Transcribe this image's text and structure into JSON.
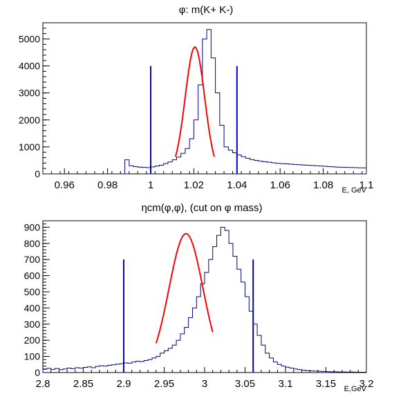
{
  "chart_data": [
    {
      "type": "histogram",
      "title": "φ: m(K+ K-)",
      "xlabel": "E, GeV",
      "ylabel": "",
      "xlim": [
        0.95,
        1.1
      ],
      "ylim": [
        0,
        5600
      ],
      "xticks": [
        "0.96",
        "0.98",
        "1",
        "1.02",
        "1.04",
        "1.06",
        "1.08",
        "1.1"
      ],
      "yticks": [
        "0",
        "1000",
        "2000",
        "3000",
        "4000",
        "5000"
      ],
      "hist": {
        "bin_width": 0.002,
        "x_start": 0.988,
        "counts": [
          520,
          300,
          270,
          250,
          240,
          230,
          260,
          290,
          320,
          380,
          440,
          520,
          620,
          760,
          940,
          1300,
          2000,
          3300,
          5000,
          5350,
          4300,
          3000,
          1800,
          1000,
          880,
          780,
          700,
          640,
          580,
          530,
          500,
          470,
          450,
          430,
          410,
          390,
          380,
          370,
          360,
          350,
          340,
          330,
          320,
          310,
          300,
          290,
          280,
          270,
          260,
          250,
          245,
          240,
          235,
          230,
          225,
          220
        ]
      },
      "fit": {
        "type": "gaussian",
        "amplitude": 4700,
        "mean": 1.0205,
        "sigma": 0.0045,
        "x_range": [
          1.0115,
          1.0295
        ],
        "color": "#ff0000"
      },
      "cut_lines": [
        {
          "x": 1.0,
          "y_top": 4000,
          "color": "#0000cc"
        },
        {
          "x": 1.04,
          "y_top": 4000,
          "color": "#0000cc"
        }
      ],
      "hist_color": "#000080"
    },
    {
      "type": "histogram",
      "title": "ηcm(φ,φ), (cut on φ mass)",
      "xlabel": "E,GeV",
      "ylabel": "",
      "xlim": [
        2.8,
        3.2
      ],
      "ylim": [
        0,
        940
      ],
      "xticks": [
        "2.8",
        "2.85",
        "2.9",
        "2.95",
        "3",
        "3.05",
        "3.1",
        "3.15",
        "3.2"
      ],
      "yticks": [
        "0",
        "100",
        "200",
        "300",
        "400",
        "500",
        "600",
        "700",
        "800",
        "900"
      ],
      "hist": {
        "bin_width": 0.005,
        "x_start": 2.8,
        "counts": [
          22,
          26,
          20,
          25,
          18,
          22,
          28,
          24,
          30,
          27,
          32,
          35,
          30,
          38,
          42,
          40,
          45,
          48,
          52,
          55,
          60,
          58,
          65,
          70,
          68,
          75,
          80,
          90,
          100,
          120,
          135,
          150,
          170,
          200,
          240,
          280,
          340,
          400,
          470,
          550,
          620,
          700,
          780,
          850,
          900,
          880,
          800,
          720,
          640,
          560,
          470,
          380,
          300,
          230,
          170,
          120,
          90,
          65,
          50,
          40,
          33,
          28,
          22,
          18,
          15,
          12,
          10,
          9,
          8,
          7,
          6,
          5,
          5,
          4,
          4,
          3,
          3,
          2,
          2,
          2
        ]
      },
      "fit": {
        "type": "gaussian",
        "amplitude": 860,
        "mean": 2.977,
        "sigma": 0.021,
        "x_range": [
          2.94,
          3.01
        ],
        "color": "#ff0000"
      },
      "cut_lines": [
        {
          "x": 2.9,
          "y_top": 700,
          "color": "#0000cc"
        },
        {
          "x": 3.06,
          "y_top": 700,
          "color": "#0000cc"
        }
      ],
      "hist_color": "#000080"
    }
  ]
}
